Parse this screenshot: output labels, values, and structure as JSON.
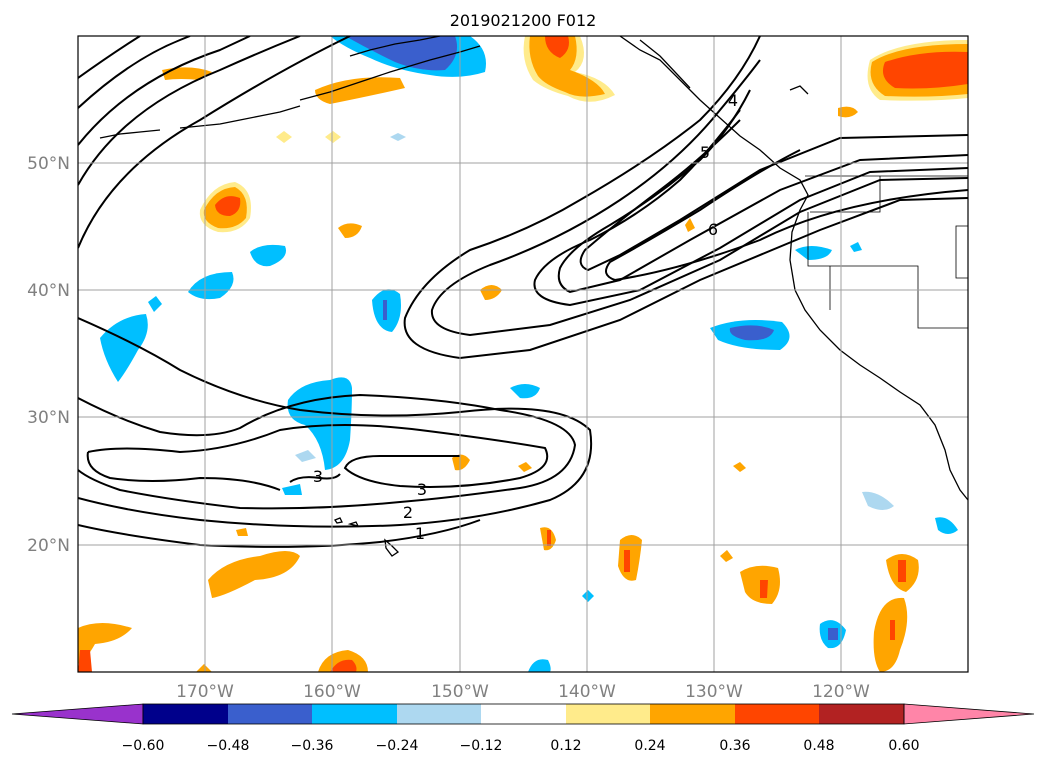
{
  "title": "2019021200 F012",
  "map": {
    "lat_labels": [
      "50°N",
      "40°N",
      "30°N",
      "20°N"
    ],
    "lon_labels": [
      "170°W",
      "160°W",
      "150°W",
      "140°W",
      "130°W",
      "120°W"
    ],
    "lat_range": [
      10,
      60
    ],
    "lon_range": [
      -180,
      -110
    ],
    "gridlines": true,
    "contour_labels": [
      "1",
      "2",
      "3",
      "3",
      "4",
      "5",
      "6"
    ]
  },
  "colorbar": {
    "tick_labels": [
      "−0.60",
      "−0.48",
      "−0.36",
      "−0.24",
      "−0.12",
      "0.12",
      "0.24",
      "0.36",
      "0.48",
      "0.60"
    ],
    "colors": [
      "#9932cc",
      "#00008b",
      "#3a5fcd",
      "#00bfff",
      "#add8f0",
      "#ffffff",
      "#ffeb8b",
      "#ffa500",
      "#ff4500",
      "#b22222",
      "#ff85a8"
    ],
    "extend": "both"
  }
}
